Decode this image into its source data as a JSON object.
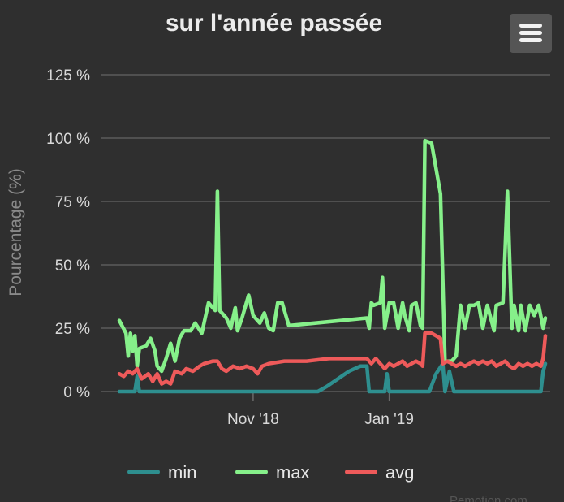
{
  "chart_data": {
    "type": "line",
    "title": "sur l'année passée",
    "xlabel": "",
    "ylabel": "Pourcentage (%)",
    "ylim": [
      0,
      125
    ],
    "yticks": [
      "0 %",
      "25 %",
      "50 %",
      "75 %",
      "100 %",
      "125 %"
    ],
    "ytick_values": [
      0,
      25,
      50,
      75,
      100,
      125
    ],
    "x_date_range": [
      "2018-09-02",
      "2019-03-12"
    ],
    "xticks": [
      {
        "label": "Nov '18",
        "date": "2018-11-01"
      },
      {
        "label": "Jan '19",
        "date": "2019-01-01"
      }
    ],
    "grid": true,
    "legend": "bottom",
    "series": [
      {
        "name": "min",
        "color": "#2e8f8f",
        "points": [
          [
            "2018-09-02",
            0
          ],
          [
            "2018-09-09",
            0
          ],
          [
            "2018-09-10",
            6
          ],
          [
            "2018-09-11",
            0
          ],
          [
            "2018-09-20",
            0
          ],
          [
            "2018-10-20",
            0
          ],
          [
            "2018-11-30",
            0
          ],
          [
            "2018-12-04",
            2
          ],
          [
            "2018-12-09",
            5
          ],
          [
            "2018-12-14",
            8
          ],
          [
            "2018-12-19",
            10
          ],
          [
            "2018-12-22",
            10
          ],
          [
            "2018-12-23",
            0
          ],
          [
            "2018-12-30",
            0
          ],
          [
            "2018-12-31",
            7
          ],
          [
            "2019-01-01",
            0
          ],
          [
            "2019-01-19",
            0
          ],
          [
            "2019-01-22",
            7
          ],
          [
            "2019-01-25",
            11
          ],
          [
            "2019-01-26",
            0
          ],
          [
            "2019-01-28",
            8
          ],
          [
            "2019-01-30",
            0
          ],
          [
            "2019-03-10",
            0
          ],
          [
            "2019-03-11",
            8
          ],
          [
            "2019-03-12",
            11
          ]
        ]
      },
      {
        "name": "max",
        "color": "#86f08a",
        "points": [
          [
            "2018-09-02",
            28
          ],
          [
            "2018-09-05",
            23
          ],
          [
            "2018-09-06",
            14
          ],
          [
            "2018-09-07",
            23
          ],
          [
            "2018-09-08",
            16
          ],
          [
            "2018-09-09",
            22
          ],
          [
            "2018-09-10",
            10
          ],
          [
            "2018-09-11",
            17
          ],
          [
            "2018-09-14",
            18
          ],
          [
            "2018-09-16",
            21
          ],
          [
            "2018-09-18",
            16
          ],
          [
            "2018-09-19",
            10
          ],
          [
            "2018-09-21",
            8
          ],
          [
            "2018-09-23",
            13
          ],
          [
            "2018-09-25",
            19
          ],
          [
            "2018-09-27",
            12
          ],
          [
            "2018-09-29",
            21
          ],
          [
            "2018-10-01",
            24
          ],
          [
            "2018-10-04",
            24
          ],
          [
            "2018-10-06",
            27
          ],
          [
            "2018-10-09",
            23
          ],
          [
            "2018-10-12",
            35
          ],
          [
            "2018-10-14",
            33
          ],
          [
            "2018-10-15",
            32
          ],
          [
            "2018-10-16",
            79
          ],
          [
            "2018-10-17",
            32
          ],
          [
            "2018-10-20",
            29
          ],
          [
            "2018-10-22",
            25
          ],
          [
            "2018-10-24",
            33
          ],
          [
            "2018-10-25",
            24
          ],
          [
            "2018-10-27",
            29
          ],
          [
            "2018-10-30",
            38
          ],
          [
            "2018-11-01",
            30
          ],
          [
            "2018-11-04",
            27
          ],
          [
            "2018-11-06",
            31
          ],
          [
            "2018-11-08",
            25
          ],
          [
            "2018-11-10",
            24
          ],
          [
            "2018-11-12",
            35
          ],
          [
            "2018-11-14",
            35
          ],
          [
            "2018-11-17",
            26
          ],
          [
            "2018-12-22",
            29
          ],
          [
            "2018-12-23",
            25
          ],
          [
            "2018-12-24",
            35
          ],
          [
            "2018-12-25",
            34
          ],
          [
            "2018-12-28",
            35
          ],
          [
            "2018-12-29",
            45
          ],
          [
            "2018-12-30",
            25
          ],
          [
            "2019-01-01",
            35
          ],
          [
            "2019-01-03",
            35
          ],
          [
            "2019-01-05",
            25
          ],
          [
            "2019-01-07",
            35
          ],
          [
            "2019-01-08",
            30
          ],
          [
            "2019-01-10",
            24
          ],
          [
            "2019-01-11",
            34
          ],
          [
            "2019-01-13",
            35
          ],
          [
            "2019-01-15",
            26
          ],
          [
            "2019-01-16",
            25
          ],
          [
            "2019-01-17",
            99
          ],
          [
            "2019-01-20",
            98
          ],
          [
            "2019-01-24",
            78
          ],
          [
            "2019-01-26",
            12
          ],
          [
            "2019-01-29",
            12
          ],
          [
            "2019-01-31",
            14
          ],
          [
            "2019-02-02",
            34
          ],
          [
            "2019-02-04",
            25
          ],
          [
            "2019-02-06",
            34
          ],
          [
            "2019-02-08",
            34
          ],
          [
            "2019-02-10",
            35
          ],
          [
            "2019-02-12",
            25
          ],
          [
            "2019-02-14",
            34
          ],
          [
            "2019-02-17",
            24
          ],
          [
            "2019-02-18",
            34
          ],
          [
            "2019-02-21",
            35
          ],
          [
            "2019-02-23",
            79
          ],
          [
            "2019-02-25",
            25
          ],
          [
            "2019-02-26",
            34
          ],
          [
            "2019-02-28",
            24
          ],
          [
            "2019-03-01",
            34
          ],
          [
            "2019-03-03",
            24
          ],
          [
            "2019-03-05",
            34
          ],
          [
            "2019-03-07",
            30
          ],
          [
            "2019-03-09",
            34
          ],
          [
            "2019-03-11",
            25
          ],
          [
            "2019-03-12",
            29
          ]
        ]
      },
      {
        "name": "avg",
        "color": "#ee5a5a",
        "points": [
          [
            "2018-09-02",
            7
          ],
          [
            "2018-09-04",
            6
          ],
          [
            "2018-09-06",
            8
          ],
          [
            "2018-09-08",
            7
          ],
          [
            "2018-09-10",
            9
          ],
          [
            "2018-09-12",
            5
          ],
          [
            "2018-09-15",
            7
          ],
          [
            "2018-09-17",
            4
          ],
          [
            "2018-09-19",
            7
          ],
          [
            "2018-09-21",
            3
          ],
          [
            "2018-09-23",
            4
          ],
          [
            "2018-09-25",
            3
          ],
          [
            "2018-09-27",
            8
          ],
          [
            "2018-09-30",
            7
          ],
          [
            "2018-10-02",
            9
          ],
          [
            "2018-10-05",
            8
          ],
          [
            "2018-10-08",
            10
          ],
          [
            "2018-10-10",
            11
          ],
          [
            "2018-10-14",
            12
          ],
          [
            "2018-10-16",
            12
          ],
          [
            "2018-10-18",
            9
          ],
          [
            "2018-10-20",
            8
          ],
          [
            "2018-10-23",
            10
          ],
          [
            "2018-10-26",
            9
          ],
          [
            "2018-10-29",
            10
          ],
          [
            "2018-11-01",
            9
          ],
          [
            "2018-11-03",
            7
          ],
          [
            "2018-11-05",
            10
          ],
          [
            "2018-11-08",
            11
          ],
          [
            "2018-11-15",
            12
          ],
          [
            "2018-11-25",
            12
          ],
          [
            "2018-12-05",
            13
          ],
          [
            "2018-12-15",
            13
          ],
          [
            "2018-12-22",
            13
          ],
          [
            "2018-12-24",
            11
          ],
          [
            "2018-12-26",
            13
          ],
          [
            "2018-12-28",
            11
          ],
          [
            "2018-12-30",
            9
          ],
          [
            "2019-01-01",
            11
          ],
          [
            "2019-01-03",
            10
          ],
          [
            "2019-01-05",
            11
          ],
          [
            "2019-01-07",
            12
          ],
          [
            "2019-01-09",
            10
          ],
          [
            "2019-01-11",
            11
          ],
          [
            "2019-01-13",
            12
          ],
          [
            "2019-01-15",
            11
          ],
          [
            "2019-01-16",
            10
          ],
          [
            "2019-01-17",
            23
          ],
          [
            "2019-01-20",
            23
          ],
          [
            "2019-01-24",
            21
          ],
          [
            "2019-01-25",
            11
          ],
          [
            "2019-01-27",
            12
          ],
          [
            "2019-01-29",
            11
          ],
          [
            "2019-01-31",
            10
          ],
          [
            "2019-02-02",
            11
          ],
          [
            "2019-02-04",
            10
          ],
          [
            "2019-02-06",
            11
          ],
          [
            "2019-02-08",
            12
          ],
          [
            "2019-02-10",
            11
          ],
          [
            "2019-02-12",
            12
          ],
          [
            "2019-02-14",
            11
          ],
          [
            "2019-02-16",
            12
          ],
          [
            "2019-02-18",
            10
          ],
          [
            "2019-02-20",
            11
          ],
          [
            "2019-02-22",
            12
          ],
          [
            "2019-02-24",
            10
          ],
          [
            "2019-02-26",
            9
          ],
          [
            "2019-02-28",
            11
          ],
          [
            "2019-03-02",
            10
          ],
          [
            "2019-03-04",
            11
          ],
          [
            "2019-03-06",
            10
          ],
          [
            "2019-03-08",
            11
          ],
          [
            "2019-03-10",
            10
          ],
          [
            "2019-03-11",
            13
          ],
          [
            "2019-03-12",
            22
          ]
        ]
      }
    ],
    "credit": "Pemotion.com"
  },
  "ui": {
    "menu_icon": "hamburger-menu-icon",
    "background_color": "#2f2f2f",
    "grid_color": "#5b5b5b"
  }
}
